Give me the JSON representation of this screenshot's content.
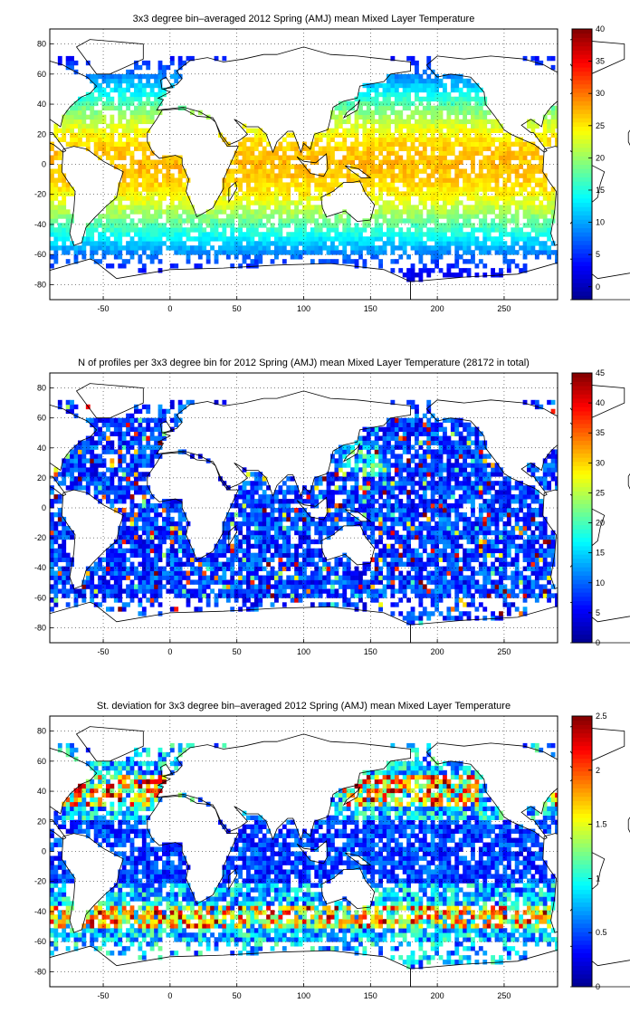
{
  "colormap": [
    "#00008f",
    "#0000ff",
    "#0080ff",
    "#00ffff",
    "#80ff80",
    "#ffff00",
    "#ff8000",
    "#ff0000",
    "#800000"
  ],
  "chart_data": [
    {
      "type": "heatmap",
      "title": "3x3 degree bin–averaged 2012 Spring (AMJ) mean Mixed Layer Temperature",
      "xlim": [
        -90,
        290
      ],
      "ylim": [
        -90,
        90
      ],
      "xticks": [
        "-50",
        "0",
        "50",
        "100",
        "150",
        "200",
        "250"
      ],
      "xtick_values": [
        -50,
        0,
        50,
        100,
        150,
        200,
        250
      ],
      "yticks": [
        "80",
        "60",
        "40",
        "20",
        "0",
        "-20",
        "-40",
        "-60",
        "-80"
      ],
      "ytick_values": [
        80,
        60,
        40,
        20,
        0,
        -20,
        -40,
        -60,
        -80
      ],
      "grid": true,
      "bin_degrees": 3,
      "colorbar": {
        "range": [
          -2,
          40
        ],
        "ticks": [
          "40",
          "35",
          "30",
          "25",
          "20",
          "15",
          "10",
          "5",
          "0"
        ],
        "tick_values": [
          40,
          35,
          30,
          25,
          20,
          15,
          10,
          5,
          0
        ]
      },
      "field": "temperature"
    },
    {
      "type": "heatmap",
      "title": "N of profiles per 3x3 degree bin for 2012 Spring (AMJ) mean Mixed Layer Temperature  (28172 in total)",
      "xlim": [
        -90,
        290
      ],
      "ylim": [
        -90,
        90
      ],
      "xticks": [
        "-50",
        "0",
        "50",
        "100",
        "150",
        "200",
        "250"
      ],
      "xtick_values": [
        -50,
        0,
        50,
        100,
        150,
        200,
        250
      ],
      "yticks": [
        "80",
        "60",
        "40",
        "20",
        "0",
        "-20",
        "-40",
        "-60",
        "-80"
      ],
      "ytick_values": [
        80,
        60,
        40,
        20,
        0,
        -20,
        -40,
        -60,
        -80
      ],
      "grid": true,
      "bin_degrees": 3,
      "colorbar": {
        "range": [
          0,
          45
        ],
        "ticks": [
          "45",
          "40",
          "35",
          "30",
          "25",
          "20",
          "15",
          "10",
          "5",
          "0"
        ],
        "tick_values": [
          45,
          40,
          35,
          30,
          25,
          20,
          15,
          10,
          5,
          0
        ]
      },
      "field": "count"
    },
    {
      "type": "heatmap",
      "title": "St. deviation for 3x3 degree bin–averaged 2012 Spring (AMJ) mean Mixed Layer Temperature",
      "xlim": [
        -90,
        290
      ],
      "ylim": [
        -90,
        90
      ],
      "xticks": [
        "-50",
        "0",
        "50",
        "100",
        "150",
        "200",
        "250"
      ],
      "xtick_values": [
        -50,
        0,
        50,
        100,
        150,
        200,
        250
      ],
      "yticks": [
        "80",
        "60",
        "40",
        "20",
        "0",
        "-20",
        "-40",
        "-60",
        "-80"
      ],
      "ytick_values": [
        80,
        60,
        40,
        20,
        0,
        -20,
        -40,
        -60,
        -80
      ],
      "grid": true,
      "bin_degrees": 3,
      "colorbar": {
        "range": [
          0,
          2.5
        ],
        "ticks": [
          "2.5",
          "2",
          "1.5",
          "1",
          "0.5",
          "0"
        ],
        "tick_values": [
          2.5,
          2,
          1.5,
          1,
          0.5,
          0
        ]
      },
      "field": "stdev"
    }
  ]
}
